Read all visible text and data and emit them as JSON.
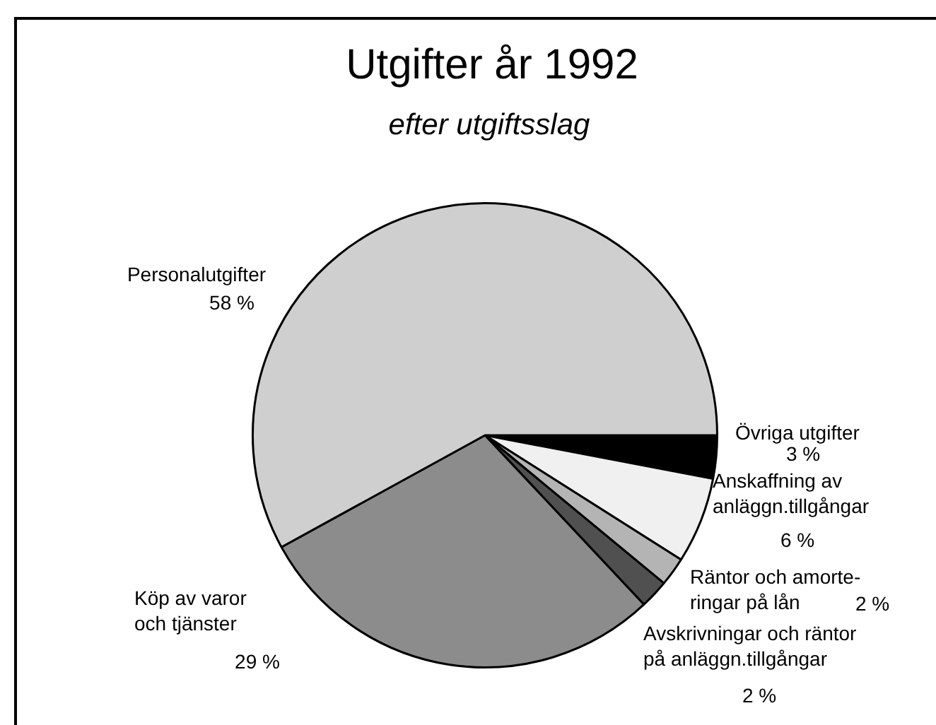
{
  "chart_data": {
    "type": "pie",
    "title": "Utgifter år 1992",
    "subtitle": "efter utgiftsslag",
    "categories": [
      "Övriga utgifter",
      "Anskaffning av\nanläggn.tillgångar",
      "Räntor och amorte-\nringar på lån",
      "Avskrivningar och räntor\npå anläggn.tillgångar",
      "Köp av varor\noch tjänster",
      "Personalutgifter"
    ],
    "values": [
      3,
      6,
      2,
      2,
      29,
      58
    ],
    "value_labels": [
      "3 %",
      "6 %",
      "2 %",
      "2 %",
      "29 %",
      "58 %"
    ],
    "colors": [
      "#000000",
      "#f0f0f0",
      "#b4b4b4",
      "#505050",
      "#8c8c8c",
      "#cfcfcf"
    ]
  }
}
